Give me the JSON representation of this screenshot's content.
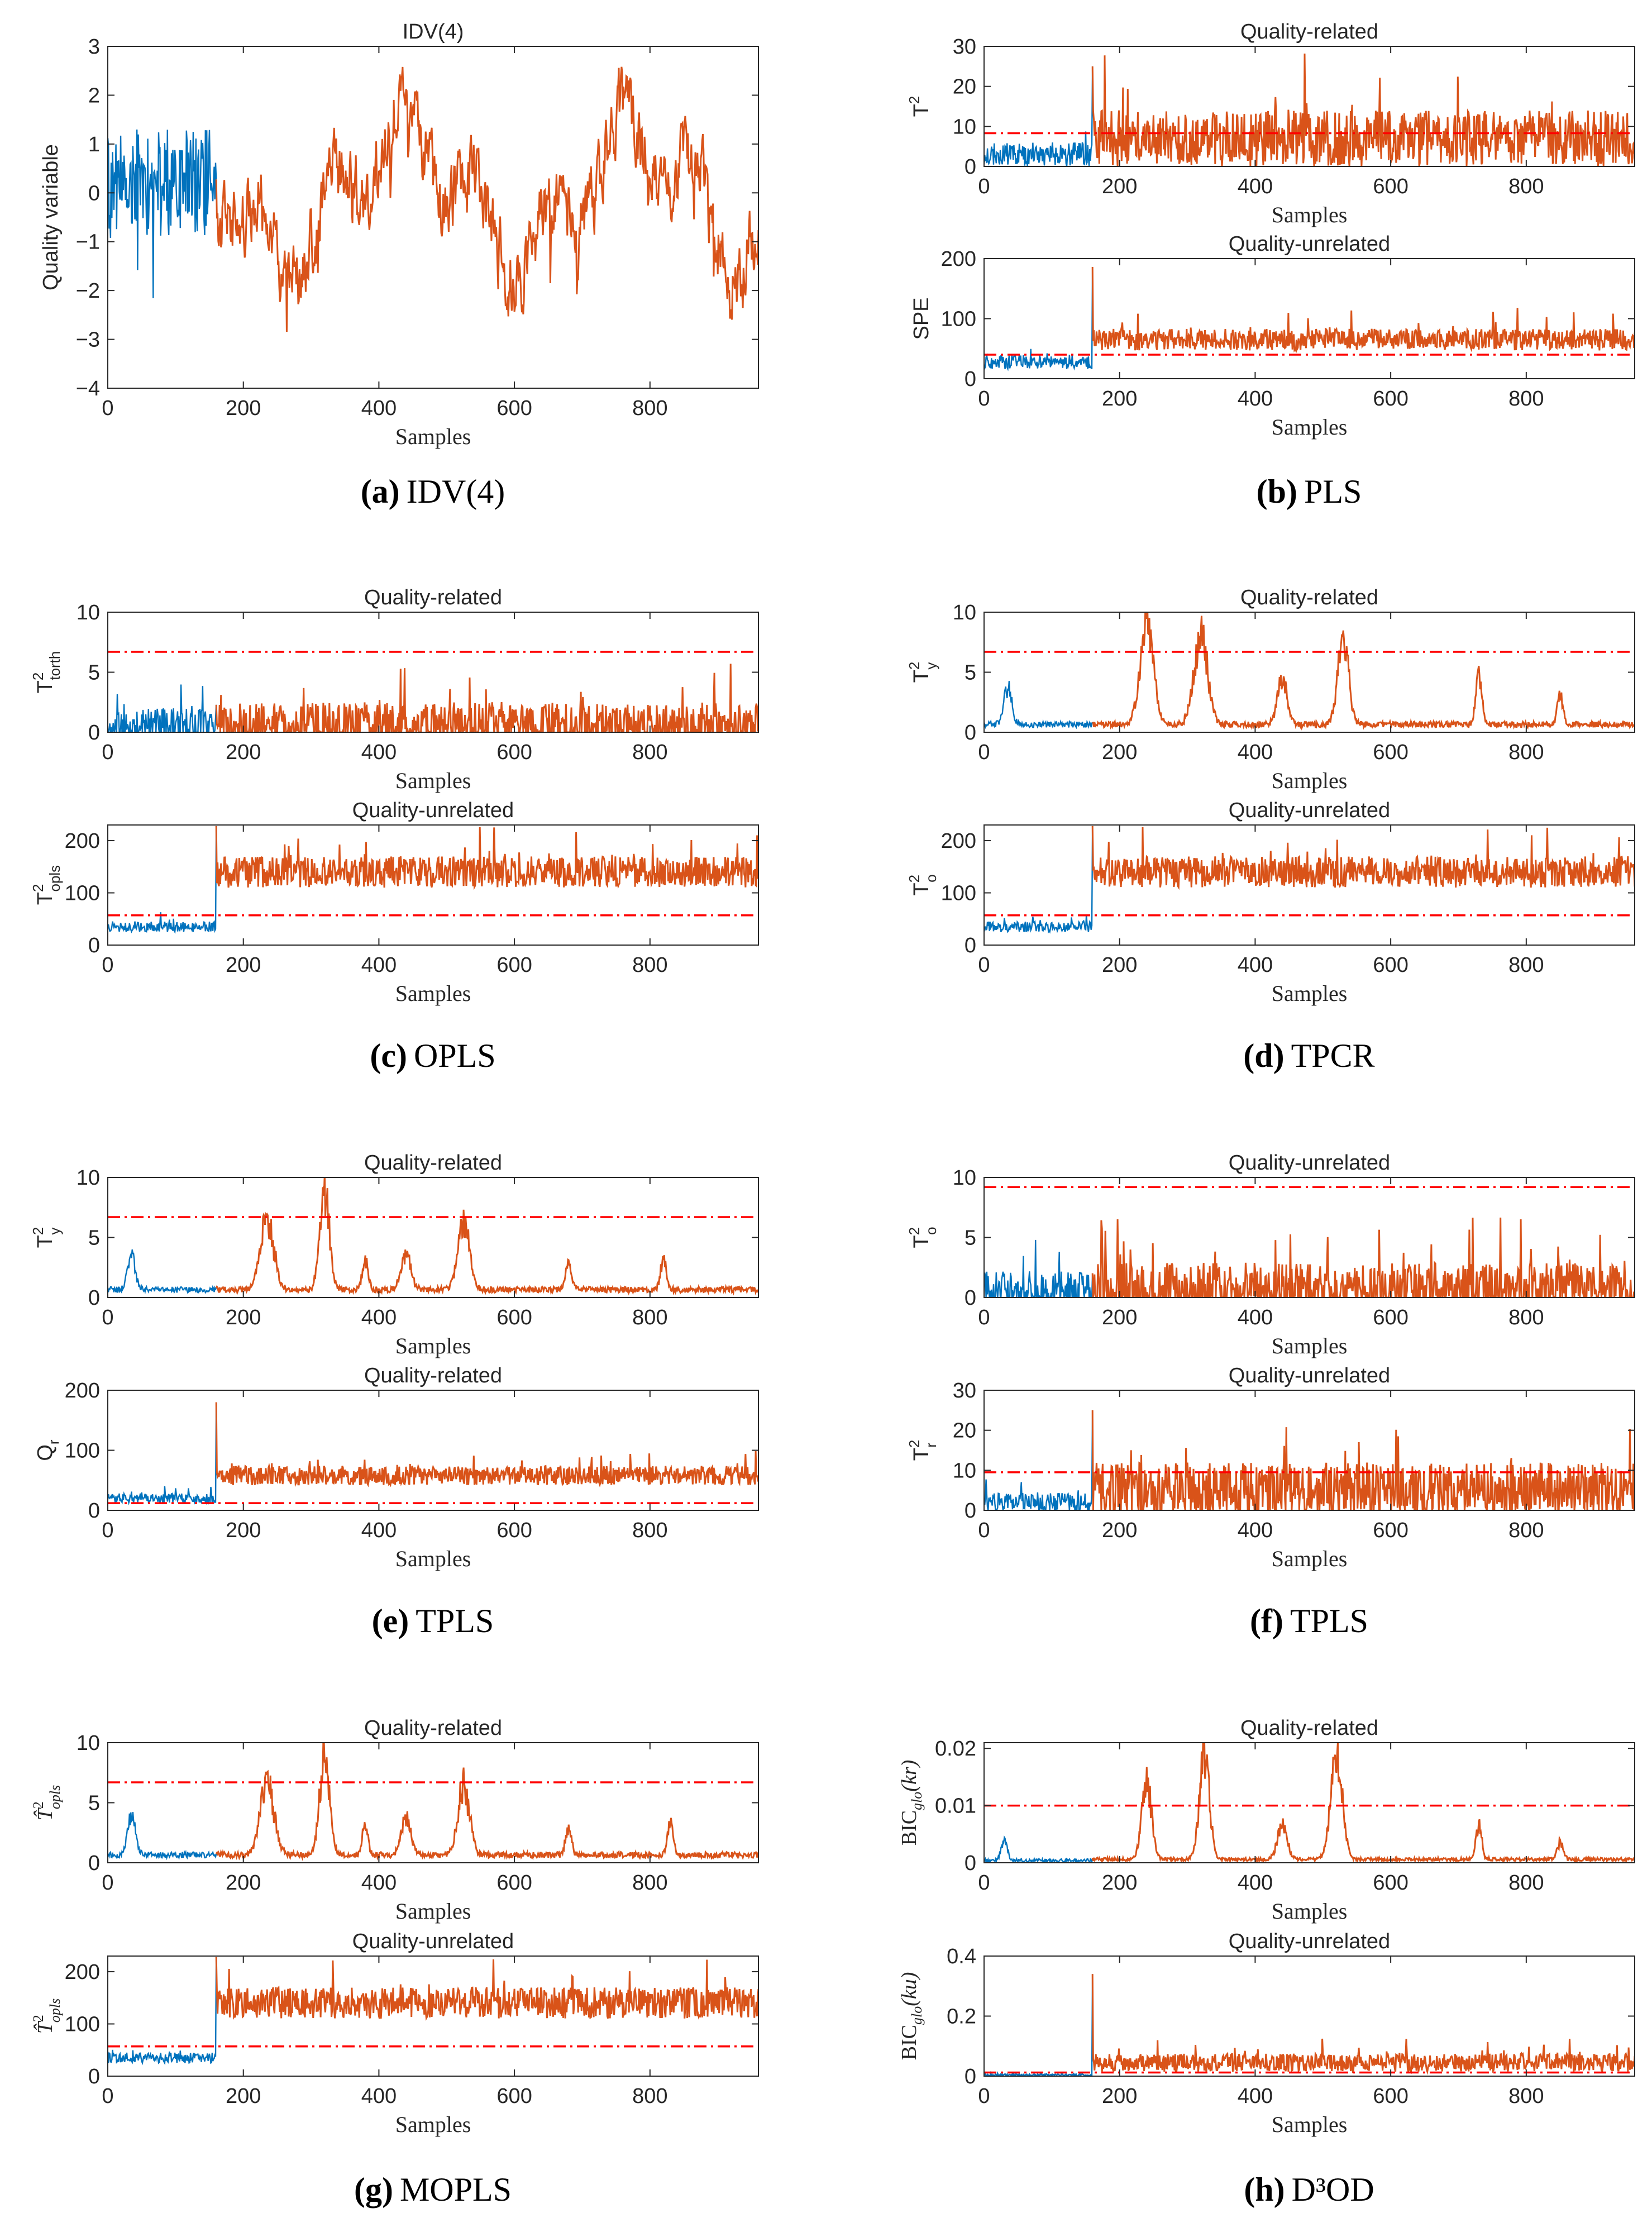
{
  "figure": {
    "colors": {
      "normal": "#0072BD",
      "fault": "#D95319",
      "threshold": "#FF0000",
      "axis": "#262626"
    },
    "x_axis": {
      "label": "Samples",
      "ticks": [
        0,
        200,
        400,
        600,
        800
      ],
      "range": [
        0,
        960
      ],
      "fault_start": 160
    }
  },
  "chart_data": [
    {
      "id": "a-main",
      "type": "line",
      "title": "IDV(4)",
      "xlabel": "Samples",
      "ylabel": "Quality variable",
      "ylim": [
        -4,
        3
      ],
      "yticks": [
        -4,
        -3,
        -2,
        -1,
        0,
        1,
        2,
        3
      ],
      "tick_labels": [
        "−4",
        "−3",
        "−2",
        "−1",
        "0",
        "1",
        "2",
        "3"
      ],
      "threshold": null,
      "series": [
        {
          "name": "normal",
          "segment": [
            0,
            160
          ]
        },
        {
          "name": "fault",
          "segment": [
            160,
            960
          ]
        }
      ],
      "signal": {
        "kind": "quality",
        "normal_range": [
          -2.9,
          1.9
        ],
        "fault_range": [
          -3.2,
          2.8
        ],
        "seed": 11
      }
    },
    {
      "id": "b-top",
      "type": "line",
      "title": "Quality-related",
      "xlabel": "Samples",
      "ylabel": "T2",
      "ylim": [
        0,
        30
      ],
      "yticks": [
        0,
        10,
        20,
        30
      ],
      "tick_labels": [
        "0",
        "10",
        "20",
        "30"
      ],
      "threshold": 8.3,
      "series": [
        {
          "name": "normal"
        },
        {
          "name": "fault"
        }
      ],
      "signal": {
        "kind": "noise",
        "normal_base": 3,
        "normal_amp": 3,
        "fault_base": 7,
        "fault_amp": 7,
        "spike": 25,
        "seed": 21
      }
    },
    {
      "id": "b-bottom",
      "type": "line",
      "title": "Quality-unrelated",
      "xlabel": "Samples",
      "ylabel": "SPE",
      "ylim": [
        0,
        200
      ],
      "yticks": [
        0,
        100,
        200
      ],
      "tick_labels": [
        "0",
        "100",
        "200"
      ],
      "threshold": 40,
      "series": [
        {
          "name": "normal"
        },
        {
          "name": "fault"
        }
      ],
      "signal": {
        "kind": "noise",
        "normal_base": 28,
        "normal_amp": 12,
        "fault_base": 65,
        "fault_amp": 18,
        "spike": 186,
        "seed": 22
      }
    },
    {
      "id": "c-top",
      "type": "line",
      "title": "Quality-related",
      "xlabel": "Samples",
      "ylabel": "T2torth",
      "ylim": [
        0,
        10
      ],
      "yticks": [
        0,
        5,
        10
      ],
      "tick_labels": [
        "0",
        "5",
        "10"
      ],
      "threshold": 6.7,
      "series": [
        {
          "name": "normal"
        },
        {
          "name": "fault"
        }
      ],
      "signal": {
        "kind": "noise",
        "normal_base": 0.4,
        "normal_amp": 1.6,
        "fault_base": 0.5,
        "fault_amp": 2.0,
        "spike": null,
        "seed": 31
      }
    },
    {
      "id": "c-bottom",
      "type": "line",
      "title": "Quality-unrelated",
      "xlabel": "Samples",
      "ylabel": "T2opls",
      "ylim": [
        0,
        230
      ],
      "yticks": [
        0,
        100,
        200
      ],
      "tick_labels": [
        "0",
        "100",
        "200"
      ],
      "threshold": 57,
      "series": [
        {
          "name": "normal"
        },
        {
          "name": "fault"
        }
      ],
      "signal": {
        "kind": "noise",
        "normal_base": 35,
        "normal_amp": 10,
        "fault_base": 140,
        "fault_amp": 30,
        "spike": 228,
        "seed": 32
      }
    },
    {
      "id": "d-top",
      "type": "line",
      "title": "Quality-related",
      "xlabel": "Samples",
      "ylabel": "T2y",
      "ylim": [
        0,
        10
      ],
      "yticks": [
        0,
        5,
        10
      ],
      "tick_labels": [
        "0",
        "5",
        "10"
      ],
      "threshold": 6.7,
      "series": [
        {
          "name": "normal"
        },
        {
          "name": "fault"
        }
      ],
      "signal": {
        "kind": "bumps",
        "normal_base": 0.4,
        "fault_base": 0.4,
        "amp": 0.5,
        "bumps": [
          [
            35,
            3.2,
            8
          ],
          [
            240,
            8.5,
            14
          ],
          [
            320,
            7.3,
            14
          ],
          [
            440,
            3.8,
            10
          ],
          [
            530,
            7.3,
            11
          ],
          [
            730,
            4.2,
            6
          ],
          [
            850,
            2.4,
            6
          ]
        ],
        "seed": 41
      }
    },
    {
      "id": "d-bottom",
      "type": "line",
      "title": "Quality-unrelated",
      "xlabel": "Samples",
      "ylabel": "T2o",
      "ylim": [
        0,
        230
      ],
      "yticks": [
        0,
        100,
        200
      ],
      "tick_labels": [
        "0",
        "100",
        "200"
      ],
      "threshold": 57,
      "series": [
        {
          "name": "normal"
        },
        {
          "name": "fault"
        }
      ],
      "signal": {
        "kind": "noise",
        "normal_base": 35,
        "normal_amp": 10,
        "fault_base": 140,
        "fault_amp": 30,
        "spike": 228,
        "seed": 42
      }
    },
    {
      "id": "e-top",
      "type": "line",
      "title": "Quality-related",
      "xlabel": "Samples",
      "ylabel": "T2y",
      "ylim": [
        0,
        10
      ],
      "yticks": [
        0,
        5,
        10
      ],
      "tick_labels": [
        "0",
        "5",
        "10"
      ],
      "threshold": 6.7,
      "series": [
        {
          "name": "normal"
        },
        {
          "name": "fault"
        }
      ],
      "signal": {
        "kind": "bumps",
        "normal_base": 0.4,
        "fault_base": 0.4,
        "amp": 0.5,
        "bumps": [
          [
            35,
            3.0,
            8
          ],
          [
            235,
            5.8,
            14
          ],
          [
            320,
            8.0,
            10
          ],
          [
            380,
            2.4,
            6
          ],
          [
            440,
            3.0,
            10
          ],
          [
            525,
            5.7,
            12
          ],
          [
            680,
            2.2,
            6
          ],
          [
            820,
            2.6,
            6
          ]
        ],
        "seed": 51
      }
    },
    {
      "id": "e-bottom",
      "type": "line",
      "title": "Quality-related",
      "xlabel": "Samples",
      "ylabel": "Qr",
      "ylim": [
        0,
        200
      ],
      "yticks": [
        0,
        100,
        200
      ],
      "tick_labels": [
        "0",
        "100",
        "200"
      ],
      "threshold": 12,
      "series": [
        {
          "name": "normal"
        },
        {
          "name": "fault"
        }
      ],
      "signal": {
        "kind": "noise",
        "normal_base": 20,
        "normal_amp": 8,
        "fault_base": 58,
        "fault_amp": 16,
        "spike": 180,
        "seed": 52
      }
    },
    {
      "id": "f-top",
      "type": "line",
      "title": "Quality-unrelated",
      "xlabel": "Samples",
      "ylabel": "T2o",
      "ylim": [
        0,
        10
      ],
      "yticks": [
        0,
        5,
        10
      ],
      "tick_labels": [
        "0",
        "5",
        "10"
      ],
      "threshold": 9.2,
      "series": [
        {
          "name": "normal"
        },
        {
          "name": "fault"
        }
      ],
      "signal": {
        "kind": "noise",
        "normal_base": 0.4,
        "normal_amp": 1.8,
        "fault_base": 0.6,
        "fault_amp": 2.3,
        "spike": null,
        "seed": 61
      }
    },
    {
      "id": "f-bottom",
      "type": "line",
      "title": "Quality-unrelated",
      "xlabel": "Samples",
      "ylabel": "T2r",
      "ylim": [
        0,
        30
      ],
      "yticks": [
        0,
        10,
        20,
        30
      ],
      "tick_labels": [
        "0",
        "10",
        "20",
        "30"
      ],
      "threshold": 9.5,
      "series": [
        {
          "name": "normal"
        },
        {
          "name": "fault"
        }
      ],
      "signal": {
        "kind": "noise",
        "normal_base": 2,
        "normal_amp": 2.5,
        "fault_base": 5,
        "fault_amp": 7,
        "spike": 25,
        "seed": 62
      }
    },
    {
      "id": "g-top",
      "type": "line",
      "title": "Quality-related",
      "xlabel": "Samples",
      "ylabel": "T^2opls",
      "ylim": [
        0,
        10
      ],
      "yticks": [
        0,
        5,
        10
      ],
      "tick_labels": [
        "0",
        "5",
        "10"
      ],
      "threshold": 6.7,
      "series": [
        {
          "name": "normal"
        },
        {
          "name": "fault"
        }
      ],
      "signal": {
        "kind": "bumps",
        "normal_base": 0.4,
        "fault_base": 0.4,
        "amp": 0.5,
        "bumps": [
          [
            35,
            3.2,
            8
          ],
          [
            235,
            6.2,
            14
          ],
          [
            320,
            8.2,
            10
          ],
          [
            380,
            2.4,
            6
          ],
          [
            440,
            3.1,
            10
          ],
          [
            525,
            5.8,
            12
          ],
          [
            680,
            2.3,
            6
          ],
          [
            830,
            2.6,
            6
          ]
        ],
        "seed": 71
      }
    },
    {
      "id": "g-bottom",
      "type": "line",
      "title": "Quality-unrelated",
      "xlabel": "Samples",
      "ylabel": "T^2opls",
      "ylim": [
        0,
        230
      ],
      "yticks": [
        0,
        100,
        200
      ],
      "tick_labels": [
        "0",
        "100",
        "200"
      ],
      "threshold": 57,
      "series": [
        {
          "name": "normal"
        },
        {
          "name": "fault"
        }
      ],
      "signal": {
        "kind": "noise",
        "normal_base": 35,
        "normal_amp": 10,
        "fault_base": 140,
        "fault_amp": 30,
        "spike": 228,
        "seed": 72
      }
    },
    {
      "id": "h-top",
      "type": "line",
      "title": "Quality-related",
      "xlabel": "Samples",
      "ylabel": "BICglo(kr)",
      "ylim": [
        0,
        0.021
      ],
      "yticks": [
        0,
        0.01,
        0.02
      ],
      "tick_labels": [
        "0",
        "0.01",
        "0.02"
      ],
      "threshold": 0.01,
      "series": [
        {
          "name": "normal"
        },
        {
          "name": "fault"
        }
      ],
      "signal": {
        "kind": "bumps",
        "normal_base": 0.0001,
        "fault_base": 0.0003,
        "amp": 0.0006,
        "bumps": [
          [
            30,
            0.0035,
            6
          ],
          [
            240,
            0.014,
            10
          ],
          [
            325,
            0.019,
            10
          ],
          [
            440,
            0.006,
            10
          ],
          [
            520,
            0.018,
            12
          ],
          [
            730,
            0.006,
            6
          ],
          [
            850,
            0.003,
            6
          ]
        ],
        "seed": 81
      }
    },
    {
      "id": "h-bottom",
      "type": "line",
      "title": "Quality-unrelated",
      "xlabel": "Samples",
      "ylabel": "BICglo(ku)",
      "ylim": [
        0,
        0.4
      ],
      "yticks": [
        0,
        0.2,
        0.4
      ],
      "tick_labels": [
        "0",
        "0.2",
        "0.4"
      ],
      "threshold": 0.012,
      "series": [
        {
          "name": "normal"
        },
        {
          "name": "fault"
        }
      ],
      "signal": {
        "kind": "noise",
        "normal_base": 0.004,
        "normal_amp": 0.004,
        "fault_base": 0.045,
        "fault_amp": 0.03,
        "spike": 0.34,
        "seed": 82
      }
    }
  ],
  "captions": [
    {
      "id": "a",
      "letter": "(a)",
      "text": "IDV(4)"
    },
    {
      "id": "b",
      "letter": "(b)",
      "text": "PLS"
    },
    {
      "id": "c",
      "letter": "(c)",
      "text": "OPLS"
    },
    {
      "id": "d",
      "letter": "(d)",
      "text": "TPCR"
    },
    {
      "id": "e",
      "letter": "(e)",
      "text": "TPLS"
    },
    {
      "id": "f",
      "letter": "(f)",
      "text": "TPLS"
    },
    {
      "id": "g",
      "letter": "(g)",
      "text": "MOPLS"
    },
    {
      "id": "h",
      "letter": "(h)",
      "text": "D³OD"
    }
  ]
}
